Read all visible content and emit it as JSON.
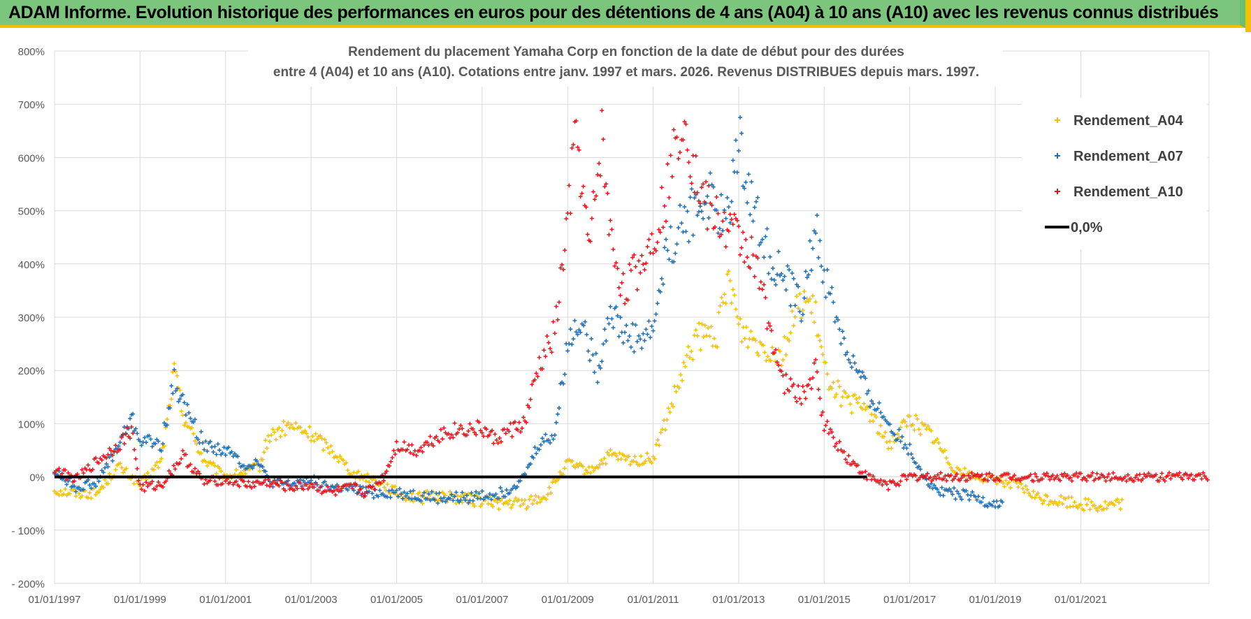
{
  "banner": {
    "title": "ADAM Informe. Evolution historique des performances en euros pour des détentions de 4 ans (A04) à 10 ans (A10) avec les revenus connus distribués"
  },
  "colors": {
    "banner_bg": "#7bc67c",
    "banner_accent": "#f2c200",
    "a04": "#f5c000",
    "a07": "#1f6fb5",
    "a10": "#e8141c",
    "zero_line": "#000000",
    "grid": "#d9d9d9"
  },
  "chart_data": {
    "type": "scatter",
    "title_line1": "Rendement du placement Yamaha Corp en fonction de la date de début pour des durées",
    "title_line2": "entre 4 (A04) et 10 ans (A10).  Cotations entre janv. 1997 et mars. 2026. Revenus DISTRIBUES depuis mars. 1997.",
    "xlabel": "",
    "ylabel": "",
    "xlim": [
      1997.0,
      2024.0
    ],
    "ylim": [
      -200,
      800
    ],
    "y_ticks": [
      -200,
      -100,
      0,
      100,
      200,
      300,
      400,
      500,
      600,
      700,
      800
    ],
    "y_tick_labels": [
      "- 200%",
      "- 100%",
      "0%",
      "100%",
      "200%",
      "300%",
      "400%",
      "500%",
      "600%",
      "700%",
      "800%"
    ],
    "x_ticks": [
      1997,
      1999,
      2001,
      2003,
      2005,
      2007,
      2009,
      2011,
      2013,
      2015,
      2017,
      2019,
      2021
    ],
    "x_tick_labels": [
      "01/01/1997",
      "01/01/1999",
      "01/01/2001",
      "01/01/2003",
      "01/01/2005",
      "01/01/2007",
      "01/01/2009",
      "01/01/2011",
      "01/01/2013",
      "01/01/2015",
      "01/01/2017",
      "01/01/2019",
      "01/01/2021"
    ],
    "legend_position": "top-right",
    "series": [
      {
        "name": "Rendement_A04",
        "marker": "+",
        "color": "#f5c000",
        "x": [
          1997.0,
          1997.5,
          1998.0,
          1998.5,
          1999.0,
          1999.5,
          1999.8,
          2000.0,
          2000.5,
          2001.0,
          2001.5,
          2001.8,
          2002.0,
          2002.5,
          2003.0,
          2003.5,
          2004.0,
          2004.5,
          2005.0,
          2005.5,
          2006.0,
          2006.5,
          2007.0,
          2007.5,
          2008.0,
          2008.5,
          2009.0,
          2009.5,
          2010.0,
          2010.5,
          2011.0,
          2011.5,
          2012.0,
          2012.5,
          2012.8,
          2013.0,
          2013.5,
          2014.0,
          2014.5,
          2014.8,
          2015.0,
          2015.5,
          2016.0,
          2016.5,
          2017.0,
          2017.5,
          2018.0,
          2018.5,
          2019.0,
          2019.5,
          2020.0,
          2020.5,
          2021.0,
          2021.5,
          2022.0
        ],
        "y": [
          -25,
          -30,
          -30,
          20,
          -15,
          30,
          200,
          120,
          30,
          0,
          10,
          20,
          75,
          95,
          80,
          50,
          5,
          -5,
          -30,
          -40,
          -35,
          -40,
          -45,
          -50,
          -50,
          -35,
          25,
          10,
          40,
          30,
          35,
          150,
          260,
          270,
          380,
          280,
          250,
          230,
          340,
          300,
          200,
          140,
          130,
          60,
          110,
          80,
          20,
          0,
          -5,
          -15,
          -40,
          -45,
          -50,
          -55,
          -50
        ]
      },
      {
        "name": "Rendement_A07",
        "marker": "+",
        "color": "#1f6fb5",
        "x": [
          1997.0,
          1997.5,
          1998.0,
          1998.5,
          1998.8,
          1999.0,
          1999.5,
          1999.8,
          2000.0,
          2000.5,
          2001.0,
          2001.5,
          2001.8,
          2002.0,
          2002.5,
          2003.0,
          2003.5,
          2004.0,
          2004.5,
          2005.0,
          2005.5,
          2006.0,
          2006.5,
          2007.0,
          2007.5,
          2008.0,
          2008.3,
          2008.7,
          2009.0,
          2009.3,
          2009.7,
          2010.0,
          2010.3,
          2010.7,
          2011.0,
          2011.3,
          2011.7,
          2012.0,
          2012.3,
          2012.7,
          2013.0,
          2013.3,
          2013.7,
          2014.0,
          2014.5,
          2014.8,
          2015.0,
          2015.5,
          2016.0,
          2016.5,
          2017.0,
          2017.5,
          2018.0,
          2018.5,
          2019.0,
          2019.2
        ],
        "y": [
          10,
          -20,
          -10,
          60,
          110,
          70,
          60,
          180,
          140,
          60,
          50,
          20,
          30,
          -10,
          -15,
          -5,
          -20,
          -25,
          -30,
          -30,
          -35,
          -40,
          -40,
          -35,
          -30,
          0,
          60,
          80,
          250,
          300,
          200,
          320,
          270,
          260,
          280,
          420,
          480,
          500,
          530,
          470,
          640,
          520,
          420,
          380,
          320,
          470,
          380,
          240,
          160,
          100,
          50,
          -20,
          -30,
          -40,
          -50,
          -50
        ]
      },
      {
        "name": "Rendement_A10",
        "marker": "+",
        "color": "#e8141c",
        "x": [
          1997.0,
          1997.5,
          1998.0,
          1998.5,
          1998.8,
          1999.0,
          1999.5,
          2000.0,
          2000.5,
          2001.0,
          2001.5,
          2002.0,
          2002.5,
          2003.0,
          2003.5,
          2004.0,
          2004.3,
          2004.7,
          2005.0,
          2005.5,
          2006.0,
          2006.5,
          2007.0,
          2007.3,
          2007.7,
          2008.0,
          2008.3,
          2008.7,
          2009.0,
          2009.2,
          2009.5,
          2009.8,
          2010.0,
          2010.3,
          2010.7,
          2011.0,
          2011.3,
          2011.7,
          2012.0,
          2012.3,
          2012.7,
          2013.0,
          2013.3,
          2013.7,
          2014.0,
          2014.5,
          2014.8,
          2015.0,
          2015.5,
          2016.0,
          2016.5,
          2017.0,
          2018.0,
          2019.0,
          2020.0,
          2021.0,
          2022.0,
          2023.0,
          2024.0
        ],
        "y": [
          15,
          -5,
          30,
          60,
          90,
          -20,
          -15,
          40,
          -10,
          -5,
          -15,
          -10,
          -20,
          -15,
          -30,
          -20,
          -30,
          0,
          60,
          50,
          80,
          90,
          90,
          70,
          90,
          100,
          200,
          270,
          480,
          650,
          420,
          640,
          450,
          350,
          400,
          450,
          530,
          690,
          560,
          500,
          470,
          450,
          420,
          300,
          180,
          150,
          200,
          100,
          40,
          0,
          -15,
          0,
          0,
          0,
          0,
          0,
          0,
          0,
          0
        ]
      },
      {
        "name": "0,0%",
        "marker": "line",
        "color": "#000000",
        "x": [
          1997.0,
          2016.0
        ],
        "y": [
          0,
          0
        ]
      }
    ]
  }
}
